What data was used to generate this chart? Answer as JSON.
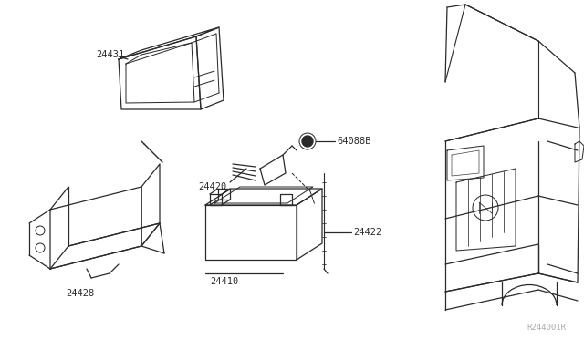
{
  "bg_color": "#ffffff",
  "line_color": "#2a2a2a",
  "label_color": "#2a2a2a",
  "watermark": "R244001R",
  "figsize": [
    6.4,
    3.72
  ],
  "dpi": 100,
  "parts": {
    "24431": {
      "label": "24431"
    },
    "24420": {
      "label": "24420"
    },
    "64088B": {
      "label": "64088B"
    },
    "24422": {
      "label": "24422"
    },
    "24410": {
      "label": "24410"
    },
    "24428": {
      "label": "24428"
    }
  }
}
